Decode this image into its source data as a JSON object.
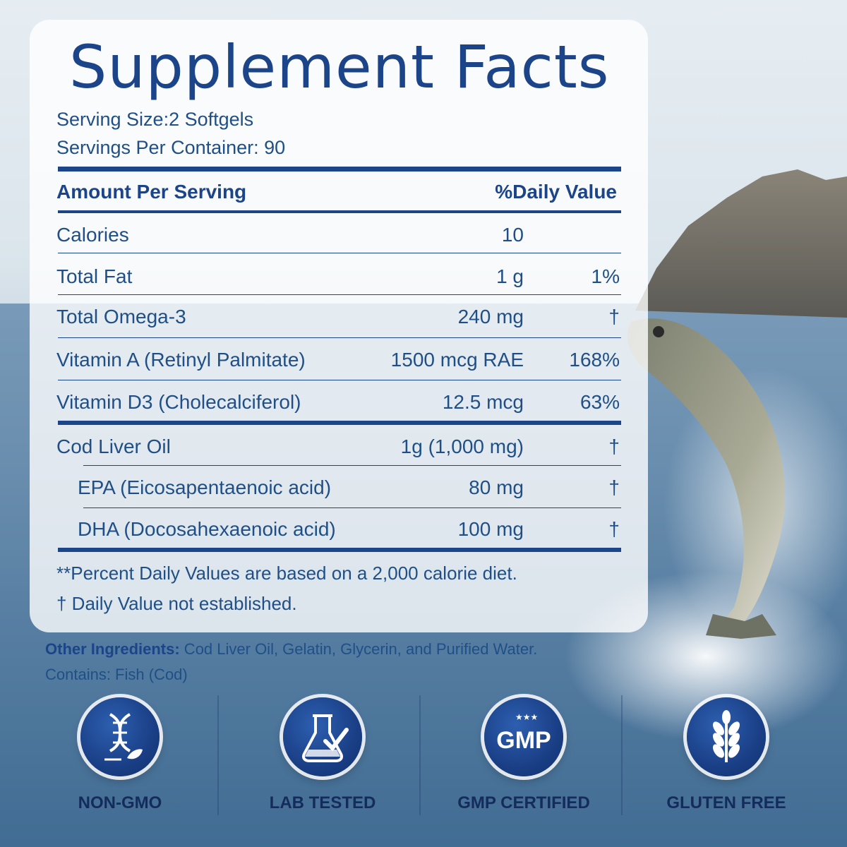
{
  "title": "Supplement Facts",
  "serving_size": "Serving Size:2 Softgels",
  "servings_per_container": "Servings Per Container: 90",
  "header": {
    "amount": "Amount Per Serving",
    "daily_value": "%Daily Value"
  },
  "rows": [
    {
      "name": "Calories",
      "amount": "10",
      "dv": ""
    },
    {
      "name": "Total Fat",
      "amount": "1 g",
      "dv": "1%"
    },
    {
      "name": "Total Omega-3",
      "amount": "240 mg",
      "dv": "†"
    },
    {
      "name": "Vitamin A (Retinyl Palmitate)",
      "amount": "1500 mcg RAE",
      "dv": "168%"
    },
    {
      "name": "Vitamin D3 (Cholecalciferol)",
      "amount": "12.5 mcg",
      "dv": "63%"
    },
    {
      "name": "Cod Liver Oil",
      "amount": "1g (1,000 mg)",
      "dv": "†"
    },
    {
      "name": "EPA (Eicosapentaenoic acid)",
      "amount": "80 mg",
      "dv": "†"
    },
    {
      "name": "DHA (Docosahexaenoic acid)",
      "amount": "100 mg",
      "dv": "†"
    }
  ],
  "notes": {
    "percent_dv": "**Percent Daily Values are based on a 2,000 calorie diet.",
    "dagger": "† Daily Value not established."
  },
  "ingredients": {
    "label": "Other Ingredients:",
    "text": " Cod Liver Oil, Gelatin, Glycerin, and Purified Water.",
    "contains": "Contains: Fish (Cod)"
  },
  "badges": [
    {
      "label": "NON-GMO",
      "icon": "dna-leaf-icon"
    },
    {
      "label": "LAB TESTED",
      "icon": "flask-check-icon"
    },
    {
      "label": "GMP CERTIFIED",
      "icon": "gmp-stars-icon",
      "icon_text": "GMP"
    },
    {
      "label": "GLUTEN FREE",
      "icon": "wheat-icon"
    }
  ],
  "colors": {
    "brand_blue": "#1c4489",
    "text_blue": "#1f4f86",
    "badge_label": "#142c5c"
  }
}
